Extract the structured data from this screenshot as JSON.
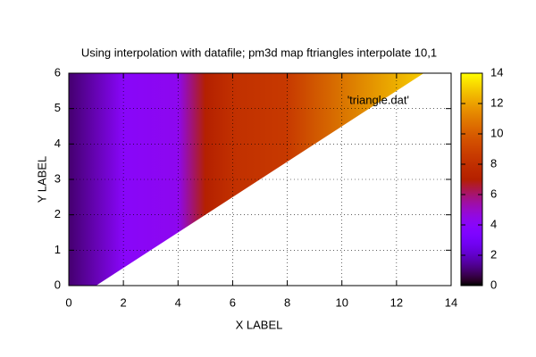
{
  "chart_data": {
    "type": "pm3d-map",
    "title": "Using interpolation with datafile; pm3d map ftriangles interpolate 10,1",
    "xlabel": "X LABEL",
    "ylabel": "Y LABEL",
    "key": "'triangle.dat'",
    "x": [
      0,
      2,
      4,
      5,
      6,
      8,
      13
    ],
    "z": [
      1,
      4,
      4.3,
      7,
      8,
      8.5,
      13
    ],
    "boundary_x": [
      0,
      1,
      13,
      0
    ],
    "boundary_y": [
      0,
      0,
      6,
      6
    ],
    "xlim": [
      0,
      14
    ],
    "xticks": [
      0,
      2,
      4,
      6,
      8,
      10,
      12,
      14
    ],
    "ylim": [
      0,
      6
    ],
    "yticks": [
      0,
      1,
      2,
      3,
      4,
      5,
      6
    ],
    "cblim": [
      0,
      14
    ],
    "cbticks": [
      0,
      2,
      4,
      6,
      8,
      10,
      12,
      14
    ],
    "grid": true
  }
}
